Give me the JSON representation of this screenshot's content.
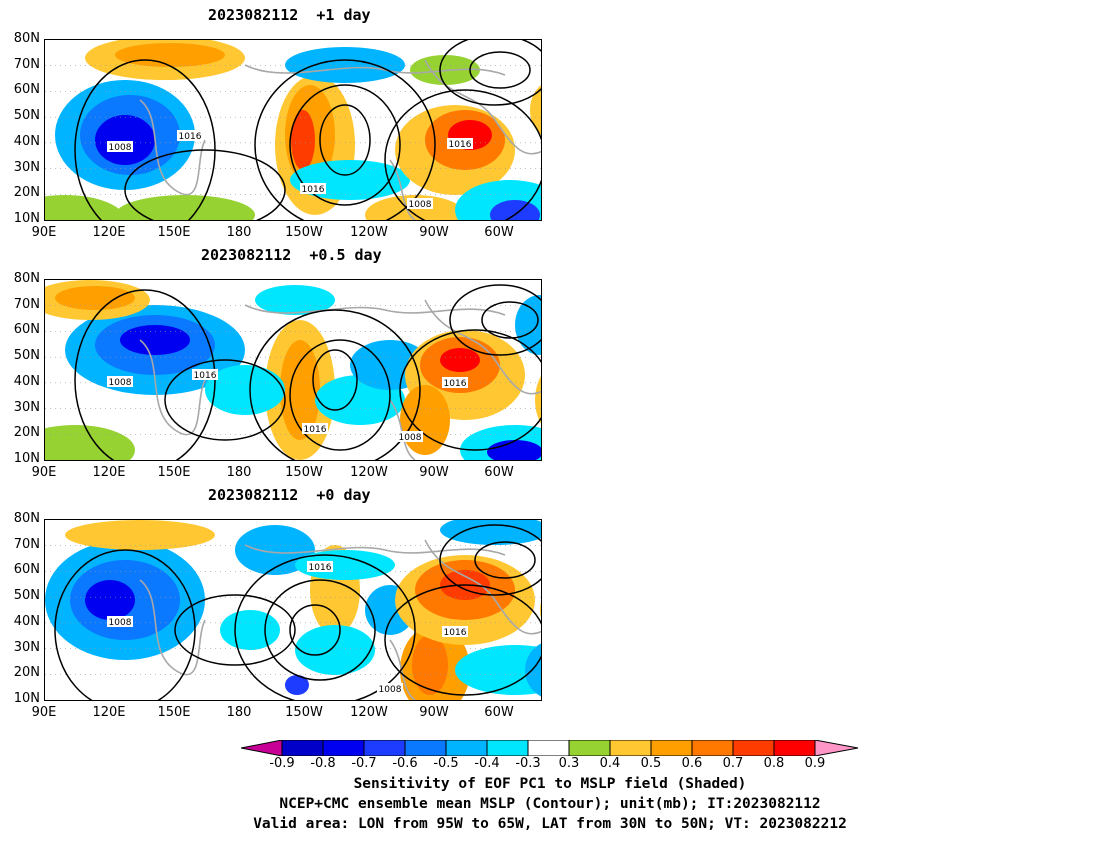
{
  "panels": [
    {
      "title": "2023082112  +1 day"
    },
    {
      "title": "2023082112  +0.5 day"
    },
    {
      "title": "2023082112  +0 day"
    }
  ],
  "lat_labels": [
    "80N",
    "70N",
    "60N",
    "50N",
    "40N",
    "30N",
    "20N",
    "10N"
  ],
  "lon_labels": [
    "90E",
    "120E",
    "150E",
    "180",
    "150W",
    "120W",
    "90W",
    "60W"
  ],
  "contour_labels": [
    "1008",
    "1016",
    "1016",
    "1008"
  ],
  "colorbar": {
    "ticks": [
      "-0.9",
      "-0.8",
      "-0.7",
      "-0.6",
      "-0.5",
      "-0.4",
      "-0.3",
      "0.3",
      "0.4",
      "0.5",
      "0.6",
      "0.7",
      "0.8",
      "0.9"
    ],
    "colors": [
      "#0000c8",
      "#0000f0",
      "#1e3cff",
      "#0a78ff",
      "#00b4ff",
      "#00e6ff",
      "#ffffff",
      "#96d232",
      "#ffc832",
      "#ffa000",
      "#ff7800",
      "#ff3c00",
      "#ff0000"
    ],
    "low_color": "#c80096",
    "high_color": "#ff96c8"
  },
  "caption": {
    "line1": "Sensitivity of EOF PC1 to MSLP field (Shaded)",
    "line2": "NCEP+CMC ensemble mean MSLP (Contour); unit(mb); IT:2023082112",
    "line3": "Valid area: LON from 95W to 65W, LAT from 30N to 50N; VT: 2023082212"
  }
}
